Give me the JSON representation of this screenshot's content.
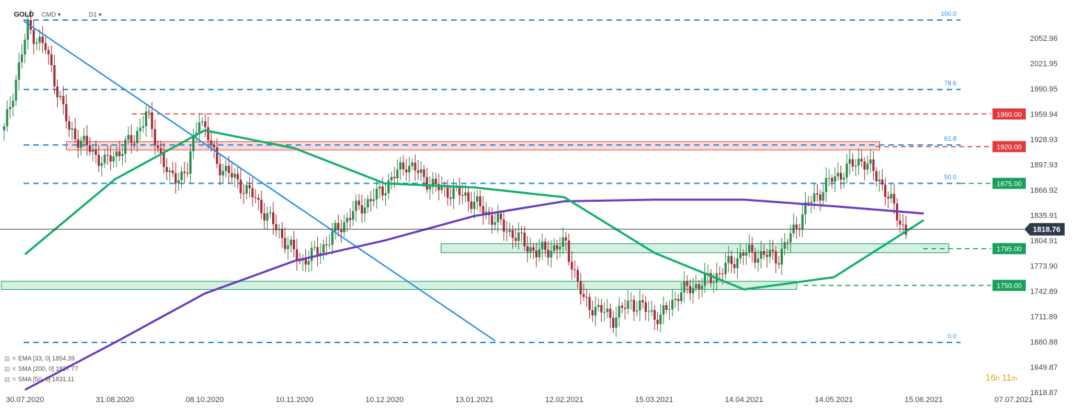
{
  "header": {
    "symbol": "GOLD",
    "type": "CMD",
    "interval": "D1"
  },
  "timer": {
    "hours": "16",
    "h": "h",
    "minutes": "11",
    "m": "m"
  },
  "indicators": [
    {
      "label": "EMA [33, 0] 1854.39",
      "color": "#10b06a"
    },
    {
      "label": "SMA [200, 0] 1837.77",
      "color": "#6a3cc0"
    },
    {
      "label": "SMA [50, 0] 1831.11",
      "color": "#2a8ee0"
    }
  ],
  "chart_data": {
    "type": "candlestick",
    "instrument": "GOLD",
    "timeframe": "D1",
    "y_axis": {
      "range": [
        1605,
        2085
      ],
      "ticks": [
        "2052.96",
        "2021.95",
        "1990.95",
        "1959.94",
        "1928.93",
        "1897.93",
        "1866.92",
        "1835.91",
        "1804.91",
        "1773.90",
        "1742.89",
        "1711.89",
        "1680.88",
        "1649.87",
        "1618.87"
      ]
    },
    "x_axis": {
      "ticks": [
        "30.07.2020",
        "31.08.2020",
        "08.10.2020",
        "10.11.2020",
        "10.12.2020",
        "13.01.2021",
        "12.02.2021",
        "15.03.2021",
        "14.04.2021",
        "14.05.2021",
        "15.06.2021",
        "07.07.2021"
      ]
    },
    "current_price": {
      "value": 1818.76,
      "label": "1818.76"
    },
    "price_levels": [
      {
        "value": 1960.0,
        "label": "1960.00",
        "color": "#e0393e"
      },
      {
        "value": 1920.0,
        "label": "1920.00",
        "color": "#e0393e"
      },
      {
        "value": 1875.0,
        "label": "1875.00",
        "color": "#16a05d"
      },
      {
        "value": 1795.0,
        "label": "1795.00",
        "color": "#16a05d"
      },
      {
        "value": 1750.0,
        "label": "1750.00",
        "color": "#16a05d"
      }
    ],
    "fibonacci": [
      {
        "label": "100.0",
        "value": 2075
      },
      {
        "label": "78.6",
        "value": 1990
      },
      {
        "label": "61.8",
        "value": 1922
      },
      {
        "label": "50.0",
        "value": 1875
      },
      {
        "label": "0.0",
        "value": 1680
      }
    ],
    "zones": [
      {
        "kind": "resistance",
        "from": 1916,
        "to": 1926,
        "start": "31.08.2020",
        "end": "14.05.2021"
      },
      {
        "kind": "support",
        "from": 1790,
        "to": 1801,
        "start": "13.01.2021",
        "end": "15.06.2021"
      },
      {
        "kind": "support",
        "from": 1745,
        "to": 1755,
        "start": "30.07.2020",
        "end": "14.04.2021"
      }
    ],
    "trendline": {
      "from": [
        "30.07.2020",
        2074
      ],
      "to": [
        "13.01.2021",
        1682
      ]
    },
    "ema_33": [
      [
        "30.07.2020",
        1788
      ],
      [
        "31.08.2020",
        1880
      ],
      [
        "08.10.2020",
        1940
      ],
      [
        "10.11.2020",
        1918
      ],
      [
        "10.12.2020",
        1875
      ],
      [
        "13.01.2021",
        1870
      ],
      [
        "12.02.2021",
        1858
      ],
      [
        "15.03.2021",
        1790
      ],
      [
        "14.04.2021",
        1745
      ],
      [
        "14.05.2021",
        1760
      ],
      [
        "15.06.2021",
        1830
      ]
    ],
    "sma_200": [
      [
        "30.07.2020",
        1622
      ],
      [
        "31.08.2020",
        1680
      ],
      [
        "08.10.2020",
        1740
      ],
      [
        "10.11.2020",
        1780
      ],
      [
        "10.12.2020",
        1805
      ],
      [
        "13.01.2021",
        1835
      ],
      [
        "12.02.2021",
        1853
      ],
      [
        "15.03.2021",
        1855
      ],
      [
        "14.04.2021",
        1855
      ],
      [
        "14.05.2021",
        1847
      ],
      [
        "15.06.2021",
        1838
      ]
    ]
  }
}
